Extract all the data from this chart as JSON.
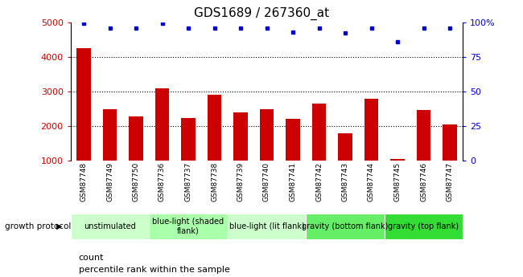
{
  "title": "GDS1689 / 267360_at",
  "samples": [
    "GSM87748",
    "GSM87749",
    "GSM87750",
    "GSM87736",
    "GSM87737",
    "GSM87738",
    "GSM87739",
    "GSM87740",
    "GSM87741",
    "GSM87742",
    "GSM87743",
    "GSM87744",
    "GSM87745",
    "GSM87746",
    "GSM87747"
  ],
  "counts": [
    4250,
    2480,
    2280,
    3100,
    2220,
    2900,
    2400,
    2480,
    2200,
    2650,
    1800,
    2780,
    1050,
    2460,
    2050
  ],
  "percentile_ranks": [
    99,
    96,
    96,
    99,
    96,
    96,
    96,
    96,
    93,
    96,
    92,
    96,
    86,
    96,
    96
  ],
  "bar_color": "#cc0000",
  "dot_color": "#0000cc",
  "plot_bg": "#ffffff",
  "sample_bg": "#c8c8c8",
  "ylim_left": [
    1000,
    5000
  ],
  "ylim_right": [
    0,
    100
  ],
  "yticks_left": [
    1000,
    2000,
    3000,
    4000,
    5000
  ],
  "yticks_right": [
    0,
    25,
    50,
    75,
    100
  ],
  "yticklabels_right": [
    "0",
    "25",
    "50",
    "75",
    "100%"
  ],
  "groups": [
    {
      "label": "unstimulated",
      "start": 0,
      "end": 3,
      "color": "#ccffcc"
    },
    {
      "label": "blue-light (shaded\nflank)",
      "start": 3,
      "end": 6,
      "color": "#aaffaa"
    },
    {
      "label": "blue-light (lit flank)",
      "start": 6,
      "end": 9,
      "color": "#ccffcc"
    },
    {
      "label": "gravity (bottom flank)",
      "start": 9,
      "end": 12,
      "color": "#66ee66"
    },
    {
      "label": "gravity (top flank)",
      "start": 12,
      "end": 15,
      "color": "#33dd33"
    }
  ],
  "growth_protocol_label": "growth protocol",
  "legend_count_label": "count",
  "legend_pct_label": "percentile rank within the sample",
  "title_color": "#000000",
  "grid_color": "#000000",
  "tick_label_color_left": "#cc0000",
  "tick_label_color_right": "#0000cc",
  "bar_bottom": 1000,
  "title_fontsize": 11,
  "tick_fontsize": 8,
  "sample_fontsize": 6.5,
  "legend_fontsize": 8,
  "group_fontsize": 7
}
